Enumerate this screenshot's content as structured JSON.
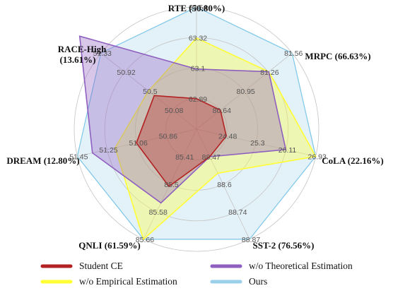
{
  "chart_data": {
    "type": "radar",
    "title": "",
    "axes": [
      {
        "label": "RTE (50.80%)",
        "ticks": [
          "62.89",
          "63.1",
          "63.32",
          "63.54"
        ]
      },
      {
        "label": "MRPC (66.63%)",
        "ticks": [
          "80.64",
          "80.95",
          "81.26",
          "81.56"
        ]
      },
      {
        "label": "CoLA (22.16%)",
        "ticks": [
          "24.48",
          "25.3",
          "26.11",
          "26.93"
        ]
      },
      {
        "label": "SST-2 (76.56%)",
        "ticks": [
          "88.47",
          "88.6",
          "88.74",
          "88.87"
        ]
      },
      {
        "label": "QNLI (61.59%)",
        "ticks": [
          "85.41",
          "85.5",
          "85.58",
          "85.66"
        ]
      },
      {
        "label": "DREAM (12.80%)",
        "ticks": [
          "50.86",
          "51.06",
          "51.25",
          "51.45"
        ]
      },
      {
        "label": "RACE-High (13.61%)",
        "ticks": [
          "50.08",
          "50.5",
          "50.92",
          "51.33"
        ]
      }
    ],
    "series": [
      {
        "name": "Ours",
        "color": "#9ad0ea",
        "values": [
          63.75,
          81.87,
          27.75,
          89.0,
          85.75,
          51.65,
          51.75
        ]
      },
      {
        "name": "w/o Empirical Estimation",
        "color": "#ffff33",
        "values": [
          63.32,
          81.26,
          26.93,
          88.55,
          85.66,
          51.2,
          50.5
        ]
      },
      {
        "name": "w/o Theoretical Estimation",
        "color": "#8f5fc0",
        "values": [
          63.1,
          81.26,
          26.11,
          88.47,
          85.55,
          51.35,
          51.7
        ]
      },
      {
        "name": "Student CE",
        "color": "#b22222",
        "values": [
          62.89,
          80.64,
          24.48,
          88.47,
          85.5,
          51.06,
          50.4
        ]
      }
    ],
    "grid": true,
    "legend_position": "bottom",
    "legend_items": [
      {
        "name": "Student CE",
        "color": "#b22222"
      },
      {
        "name": "w/o Theoretical Estimation",
        "color": "#8f5fc0"
      },
      {
        "name": "w/o Empirical Estimation",
        "color": "#ffff33"
      },
      {
        "name": "Ours",
        "color": "#9ad0ea"
      }
    ]
  }
}
